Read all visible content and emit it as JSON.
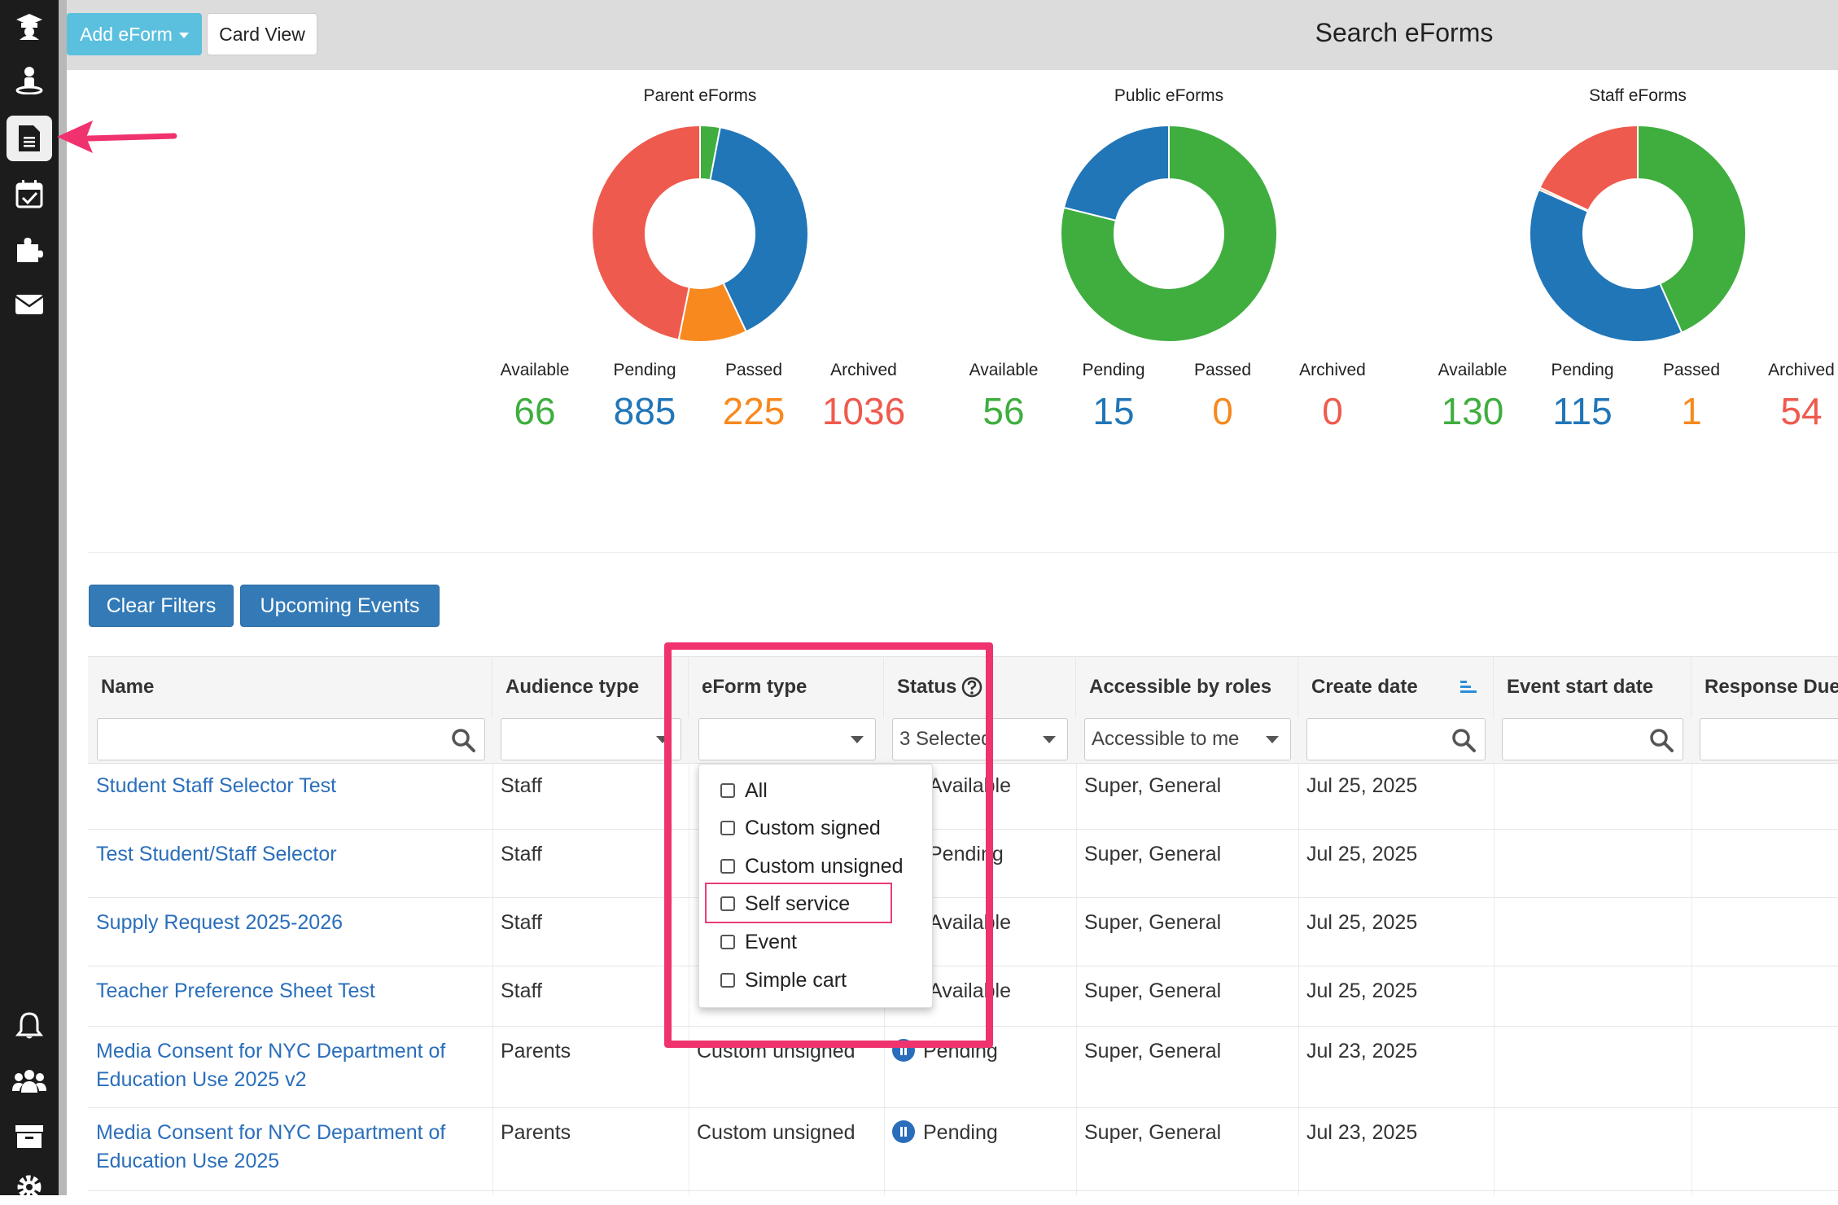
{
  "toolbar": {
    "add_label": "Add eForm",
    "card_view_label": "Card View",
    "title": "Search eForms"
  },
  "sidebar": {
    "top_icons": [
      "graduation-cap-icon",
      "student-icon",
      "document-icon",
      "calendar-check-icon",
      "puzzle-icon",
      "envelope-icon"
    ],
    "bottom_icons": [
      "bell-icon",
      "users-icon",
      "archive-icon",
      "gear-icon"
    ]
  },
  "charts": [
    {
      "title": "Parent eForms",
      "stats": [
        {
          "label": "Available",
          "value": "66"
        },
        {
          "label": "Pending",
          "value": "885"
        },
        {
          "label": "Passed",
          "value": "225"
        },
        {
          "label": "Archived",
          "value": "1036"
        }
      ]
    },
    {
      "title": "Public eForms",
      "stats": [
        {
          "label": "Available",
          "value": "56"
        },
        {
          "label": "Pending",
          "value": "15"
        },
        {
          "label": "Passed",
          "value": "0"
        },
        {
          "label": "Archived",
          "value": "0"
        }
      ]
    },
    {
      "title": "Staff eForms",
      "stats": [
        {
          "label": "Available",
          "value": "130"
        },
        {
          "label": "Pending",
          "value": "115"
        },
        {
          "label": "Passed",
          "value": "1"
        },
        {
          "label": "Archived",
          "value": "54"
        }
      ]
    }
  ],
  "colors": {
    "available": "#3fae3f",
    "pending": "#2176b8",
    "passed": "#f7891f",
    "archived": "#ef5a4e"
  },
  "chart_data": [
    {
      "type": "pie",
      "title": "Parent eForms",
      "categories": [
        "Available",
        "Pending",
        "Passed",
        "Archived"
      ],
      "values": [
        66,
        885,
        225,
        1036
      ]
    },
    {
      "type": "pie",
      "title": "Public eForms",
      "categories": [
        "Available",
        "Pending",
        "Passed",
        "Archived"
      ],
      "values": [
        56,
        15,
        0,
        0
      ]
    },
    {
      "type": "pie",
      "title": "Staff eForms",
      "categories": [
        "Available",
        "Pending",
        "Passed",
        "Archived"
      ],
      "values": [
        130,
        115,
        1,
        54
      ]
    }
  ],
  "filters_bar": {
    "clear_label": "Clear Filters",
    "upcoming_label": "Upcoming Events"
  },
  "table": {
    "columns": [
      "Name",
      "Audience type",
      "eForm type",
      "Status",
      "Accessible by roles",
      "Create date",
      "Event start date",
      "Response Due"
    ],
    "filters": {
      "status_value": "3 Selected",
      "roles_value": "Accessible to me"
    },
    "rows": [
      {
        "name": "Student Staff Selector Test",
        "audience": "Staff",
        "status": "Available",
        "roles": "Super, General",
        "date": "Jul 25, 2025"
      },
      {
        "name": "Test Student/Staff Selector",
        "audience": "Staff",
        "status": "Pending",
        "roles": "Super, General",
        "date": "Jul 25, 2025"
      },
      {
        "name": "Supply Request 2025-2026",
        "audience": "Staff",
        "status": "Available",
        "roles": "Super, General",
        "date": "Jul 25, 2025"
      },
      {
        "name": "Teacher Preference Sheet Test",
        "audience": "Staff",
        "status": "Available",
        "roles": "Super, General",
        "date": "Jul 25, 2025"
      },
      {
        "name_line1": "Media Consent for NYC Department of",
        "name_line2": "Education Use 2025 v2",
        "audience": "Parents",
        "type": "Custom unsigned",
        "status": "Pending",
        "roles": "Super, General",
        "date": "Jul 23, 2025"
      },
      {
        "name_line1": "Media Consent for NYC Department of",
        "name_line2": "Education Use 2025",
        "audience": "Parents",
        "type": "Custom unsigned",
        "status": "Pending",
        "roles": "Super, General",
        "date": "Jul 23, 2025"
      }
    ]
  },
  "dropdown": {
    "options": [
      "All",
      "Custom signed",
      "Custom unsigned",
      "Self service",
      "Event",
      "Simple cart"
    ],
    "highlighted": "Self service"
  }
}
